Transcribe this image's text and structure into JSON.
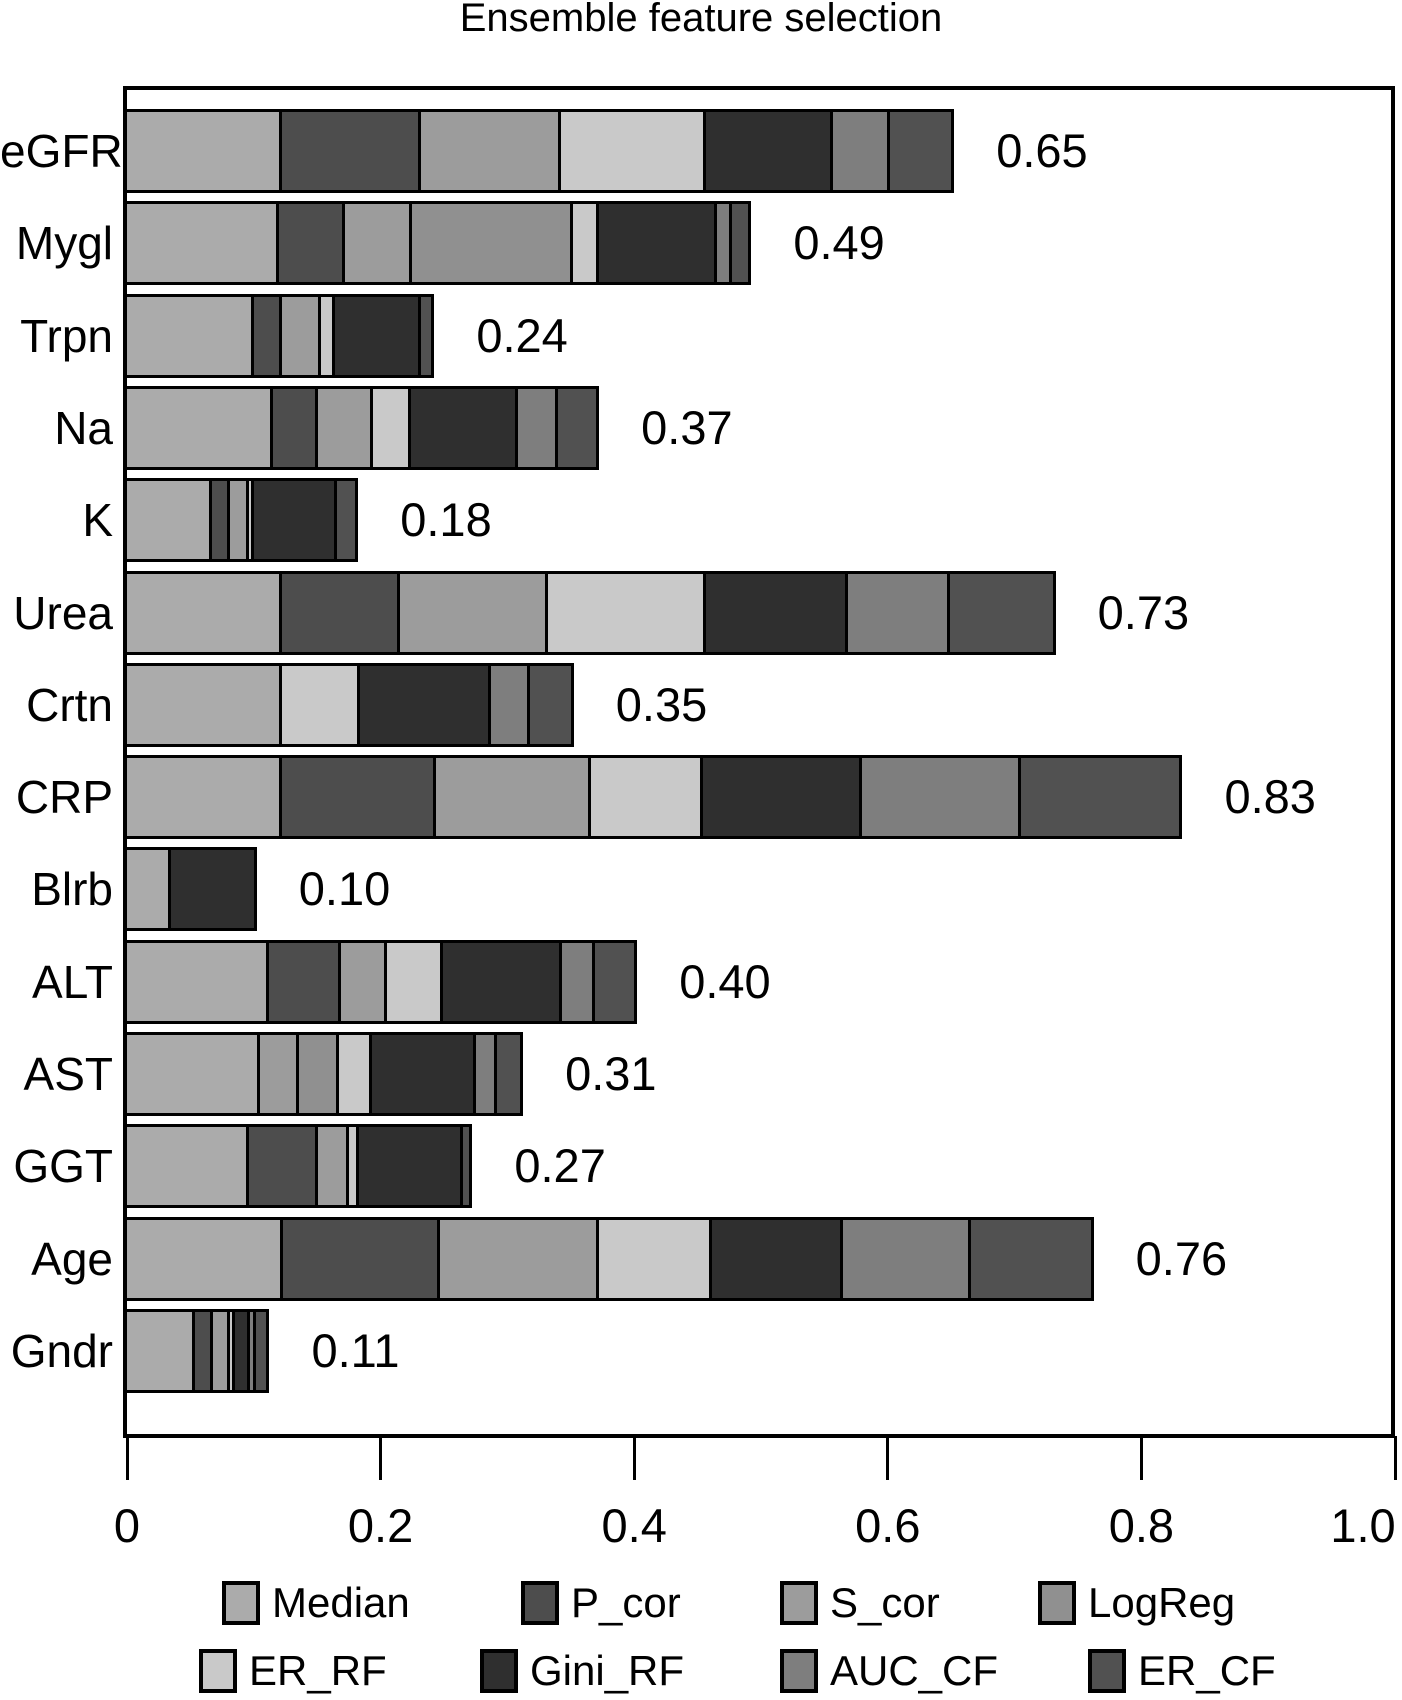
{
  "figure": {
    "title": "Ensemble feature selection"
  },
  "chart_data": {
    "type": "bar",
    "stacked": true,
    "orientation": "horizontal",
    "title": "Ensemble feature selection",
    "xlabel": "",
    "ylabel": "",
    "xlim": [
      0,
      1.0
    ],
    "x_ticks": [
      0,
      0.2,
      0.4,
      0.6,
      0.8,
      1.0
    ],
    "x_tick_labels": [
      "0",
      "0.2",
      "0.4",
      "0.6",
      "0.8",
      "1.0"
    ],
    "grid": false,
    "legend_position": "bottom",
    "legend_rows": [
      [
        "Median",
        "P_cor",
        "S_cor",
        "LogReg"
      ],
      [
        "ER_RF",
        "Gini_RF",
        "AUC_CF",
        "ER_CF"
      ]
    ],
    "categories": [
      "eGFR",
      "Mygl",
      "Trpn",
      "Na",
      "K",
      "Urea",
      "Crtn",
      "CRP",
      "Blrb",
      "ALT",
      "AST",
      "GGT",
      "Age",
      "Gndr"
    ],
    "bar_total_labels": [
      "0.65",
      "0.49",
      "0.24",
      "0.37",
      "0.18",
      "0.73",
      "0.35",
      "0.83",
      "0.10",
      "0.40",
      "0.31",
      "0.27",
      "0.76",
      "0.11"
    ],
    "bar_totals": [
      0.65,
      0.49,
      0.24,
      0.37,
      0.18,
      0.73,
      0.35,
      0.83,
      0.1,
      0.4,
      0.31,
      0.27,
      0.76,
      0.11
    ],
    "series": [
      {
        "name": "Median",
        "color": "#ababab",
        "values": [
          0.122,
          0.12,
          0.1,
          0.115,
          0.067,
          0.122,
          0.122,
          0.122,
          0.035,
          0.112,
          0.105,
          0.096,
          0.123,
          0.054
        ]
      },
      {
        "name": "P_cor",
        "color": "#4d4d4d",
        "values": [
          0.11,
          0.052,
          0.022,
          0.036,
          0.014,
          0.093,
          0.0,
          0.122,
          0.0,
          0.057,
          0.0,
          0.055,
          0.124,
          0.014
        ]
      },
      {
        "name": "S_cor",
        "color": "#9c9c9c",
        "values": [
          0.11,
          0.053,
          0.031,
          0.043,
          0.015,
          0.117,
          0.0,
          0.122,
          0.0,
          0.036,
          0.031,
          0.024,
          0.125,
          0.013
        ]
      },
      {
        "name": "LogReg",
        "color": "#909090",
        "values": [
          0.0,
          0.127,
          0.0,
          0.0,
          0.0,
          0.0,
          0.0,
          0.0,
          0.0,
          0.0,
          0.031,
          0.0,
          0.0,
          0.0
        ]
      },
      {
        "name": "ER_RF",
        "color": "#c9c9c9",
        "values": [
          0.115,
          0.02,
          0.011,
          0.03,
          0.004,
          0.125,
          0.062,
          0.088,
          0.0,
          0.044,
          0.026,
          0.008,
          0.089,
          0.004
        ]
      },
      {
        "name": "Gini_RF",
        "color": "#2f2f2f",
        "values": [
          0.1,
          0.093,
          0.068,
          0.084,
          0.066,
          0.112,
          0.103,
          0.126,
          0.065,
          0.094,
          0.082,
          0.082,
          0.104,
          0.012
        ]
      },
      {
        "name": "AUC_CF",
        "color": "#7e7e7e",
        "values": [
          0.045,
          0.012,
          0.0,
          0.032,
          0.0,
          0.08,
          0.031,
          0.125,
          0.0,
          0.026,
          0.017,
          0.0,
          0.101,
          0.005
        ]
      },
      {
        "name": "ER_CF",
        "color": "#515151",
        "values": [
          0.048,
          0.013,
          0.008,
          0.03,
          0.014,
          0.081,
          0.032,
          0.125,
          0.0,
          0.031,
          0.018,
          0.005,
          0.094,
          0.008
        ]
      }
    ]
  }
}
